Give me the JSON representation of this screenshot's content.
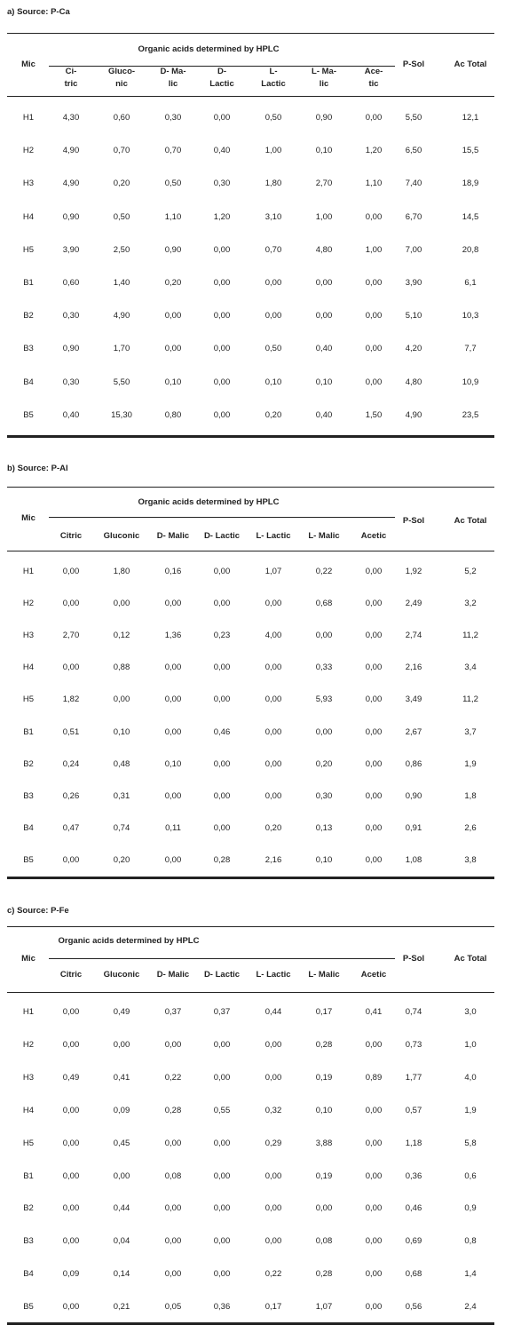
{
  "tables": [
    {
      "caption": "a) Source: P-Ca",
      "header": {
        "mic": "Mic",
        "group": "Organic acids determined by HPLC",
        "psol": "P-Sol",
        "total": "Ac Total",
        "acids": [
          "Ci-\ntric",
          "Gluco-\nnic",
          "D- Ma-\nlic",
          "D-\nLactic",
          "L-\nLactic",
          "L- Ma-\nlic",
          "Ace-\ntic"
        ]
      },
      "rows": [
        [
          "H1",
          "4,30",
          "0,60",
          "0,30",
          "0,00",
          "0,50",
          "0,90",
          "0,00",
          "5,50",
          "12,1"
        ],
        [
          "H2",
          "4,90",
          "0,70",
          "0,70",
          "0,40",
          "1,00",
          "0,10",
          "1,20",
          "6,50",
          "15,5"
        ],
        [
          "H3",
          "4,90",
          "0,20",
          "0,50",
          "0,30",
          "1,80",
          "2,70",
          "1,10",
          "7,40",
          "18,9"
        ],
        [
          "H4",
          "0,90",
          "0,50",
          "1,10",
          "1,20",
          "3,10",
          "1,00",
          "0,00",
          "6,70",
          "14,5"
        ],
        [
          "H5",
          "3,90",
          "2,50",
          "0,90",
          "0,00",
          "0,70",
          "4,80",
          "1,00",
          "7,00",
          "20,8"
        ],
        [
          "B1",
          "0,60",
          "1,40",
          "0,20",
          "0,00",
          "0,00",
          "0,00",
          "0,00",
          "3,90",
          "6,1"
        ],
        [
          "B2",
          "0,30",
          "4,90",
          "0,00",
          "0,00",
          "0,00",
          "0,00",
          "0,00",
          "5,10",
          "10,3"
        ],
        [
          "B3",
          "0,90",
          "1,70",
          "0,00",
          "0,00",
          "0,50",
          "0,40",
          "0,00",
          "4,20",
          "7,7"
        ],
        [
          "B4",
          "0,30",
          "5,50",
          "0,10",
          "0,00",
          "0,10",
          "0,10",
          "0,00",
          "4,80",
          "10,9"
        ],
        [
          "B5",
          "0,40",
          "15,30",
          "0,80",
          "0,00",
          "0,20",
          "0,40",
          "1,50",
          "4,90",
          "23,5"
        ]
      ]
    },
    {
      "caption": "b) Source: P-Al",
      "header": {
        "mic": "Mic",
        "group": "Organic acids determined by HPLC",
        "psol": "P-Sol",
        "total": "Ac Total",
        "acids": [
          "Citric",
          "Gluconic",
          "D- Malic",
          "D- Lactic",
          "L- Lactic",
          "L- Malic",
          "Acetic"
        ]
      },
      "rows": [
        [
          "H1",
          "0,00",
          "1,80",
          "0,16",
          "0,00",
          "1,07",
          "0,22",
          "0,00",
          "1,92",
          "5,2"
        ],
        [
          "H2",
          "0,00",
          "0,00",
          "0,00",
          "0,00",
          "0,00",
          "0,68",
          "0,00",
          "2,49",
          "3,2"
        ],
        [
          "H3",
          "2,70",
          "0,12",
          "1,36",
          "0,23",
          "4,00",
          "0,00",
          "0,00",
          "2,74",
          "11,2"
        ],
        [
          "H4",
          "0,00",
          "0,88",
          "0,00",
          "0,00",
          "0,00",
          "0,33",
          "0,00",
          "2,16",
          "3,4"
        ],
        [
          "H5",
          "1,82",
          "0,00",
          "0,00",
          "0,00",
          "0,00",
          "5,93",
          "0,00",
          "3,49",
          "11,2"
        ],
        [
          "B1",
          "0,51",
          "0,10",
          "0,00",
          "0,46",
          "0,00",
          "0,00",
          "0,00",
          "2,67",
          "3,7"
        ],
        [
          "B2",
          "0,24",
          "0,48",
          "0,10",
          "0,00",
          "0,00",
          "0,20",
          "0,00",
          "0,86",
          "1,9"
        ],
        [
          "B3",
          "0,26",
          "0,31",
          "0,00",
          "0,00",
          "0,00",
          "0,30",
          "0,00",
          "0,90",
          "1,8"
        ],
        [
          "B4",
          "0,47",
          "0,74",
          "0,11",
          "0,00",
          "0,20",
          "0,13",
          "0,00",
          "0,91",
          "2,6"
        ],
        [
          "B5",
          "0,00",
          "0,20",
          "0,00",
          "0,28",
          "2,16",
          "0,10",
          "0,00",
          "1,08",
          "3,8"
        ]
      ]
    },
    {
      "caption": "c) Source: P-Fe",
      "header": {
        "mic": "Mic",
        "group": "Organic acids determined by HPLC",
        "psol": "P-Sol",
        "total": "Ac Total",
        "acids": [
          "Citric",
          "Gluconic",
          "D- Malic",
          "D- Lactic",
          "L- Lactic",
          "L- Malic",
          "Acetic"
        ]
      },
      "rows": [
        [
          "H1",
          "0,00",
          "0,49",
          "0,37",
          "0,37",
          "0,44",
          "0,17",
          "0,41",
          "0,74",
          "3,0"
        ],
        [
          "H2",
          "0,00",
          "0,00",
          "0,00",
          "0,00",
          "0,00",
          "0,28",
          "0,00",
          "0,73",
          "1,0"
        ],
        [
          "H3",
          "0,49",
          "0,41",
          "0,22",
          "0,00",
          "0,00",
          "0,19",
          "0,89",
          "1,77",
          "4,0"
        ],
        [
          "H4",
          "0,00",
          "0,09",
          "0,28",
          "0,55",
          "0,32",
          "0,10",
          "0,00",
          "0,57",
          "1,9"
        ],
        [
          "H5",
          "0,00",
          "0,45",
          "0,00",
          "0,00",
          "0,29",
          "3,88",
          "0,00",
          "1,18",
          "5,8"
        ],
        [
          "B1",
          "0,00",
          "0,00",
          "0,08",
          "0,00",
          "0,00",
          "0,19",
          "0,00",
          "0,36",
          "0,6"
        ],
        [
          "B2",
          "0,00",
          "0,44",
          "0,00",
          "0,00",
          "0,00",
          "0,00",
          "0,00",
          "0,46",
          "0,9"
        ],
        [
          "B3",
          "0,00",
          "0,04",
          "0,00",
          "0,00",
          "0,00",
          "0,08",
          "0,00",
          "0,69",
          "0,8"
        ],
        [
          "B4",
          "0,09",
          "0,14",
          "0,00",
          "0,00",
          "0,22",
          "0,28",
          "0,00",
          "0,68",
          "1,4"
        ],
        [
          "B5",
          "0,00",
          "0,21",
          "0,05",
          "0,36",
          "0,17",
          "1,07",
          "0,00",
          "0,56",
          "2,4"
        ]
      ]
    }
  ]
}
